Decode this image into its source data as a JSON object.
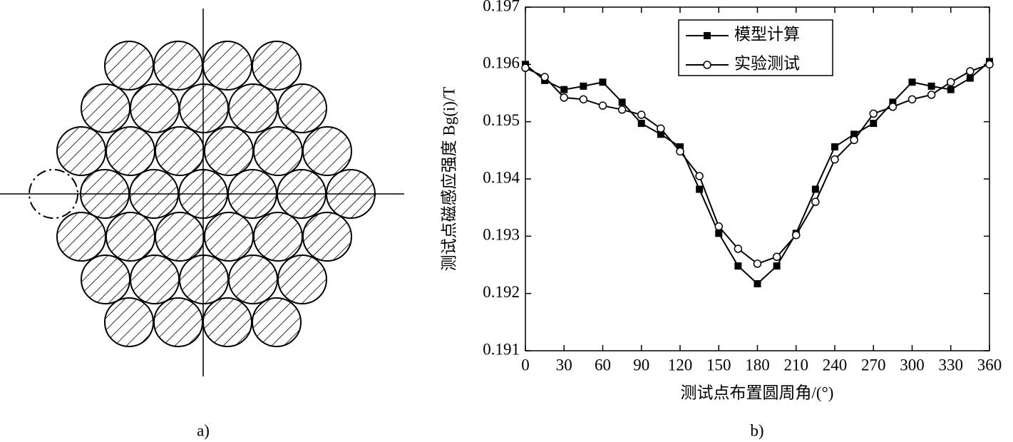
{
  "captions": [
    "a)",
    "b)"
  ],
  "chart_data": {
    "type": "line",
    "xlabel": "测试点布置圆周角/(°)",
    "ylabel": "测试点磁感应强度 Bg(i)/T",
    "x": [
      0,
      15,
      30,
      45,
      60,
      75,
      90,
      105,
      120,
      135,
      150,
      165,
      180,
      195,
      210,
      225,
      240,
      255,
      270,
      285,
      300,
      315,
      330,
      345,
      360
    ],
    "series": [
      {
        "name": "模型计算",
        "color": "#000000",
        "marker": "square",
        "values": [
          0.196,
          0.19572,
          0.19556,
          0.19562,
          0.19569,
          0.19534,
          0.19497,
          0.19478,
          0.19456,
          0.19382,
          0.19305,
          0.19248,
          0.19217,
          0.19248,
          0.19305,
          0.19382,
          0.19456,
          0.19478,
          0.19497,
          0.19534,
          0.19569,
          0.19562,
          0.19556,
          0.19576,
          0.19605
        ]
      },
      {
        "name": "实验测试",
        "color": "#000000",
        "marker": "circle",
        "values": [
          0.19594,
          0.19578,
          0.19542,
          0.19539,
          0.19528,
          0.19521,
          0.19512,
          0.19488,
          0.19448,
          0.19405,
          0.19317,
          0.19278,
          0.19252,
          0.19264,
          0.19302,
          0.1936,
          0.19434,
          0.19468,
          0.19514,
          0.19526,
          0.19539,
          0.19547,
          0.19569,
          0.19588,
          0.196
        ]
      }
    ],
    "xlim": [
      0,
      360
    ],
    "xticks": [
      0,
      30,
      60,
      90,
      120,
      150,
      180,
      210,
      240,
      270,
      300,
      330,
      360
    ],
    "ylim": [
      0.191,
      0.197
    ],
    "yticks": [
      0.191,
      0.192,
      0.193,
      0.194,
      0.195,
      0.196,
      0.197
    ],
    "legend": "upper center"
  }
}
